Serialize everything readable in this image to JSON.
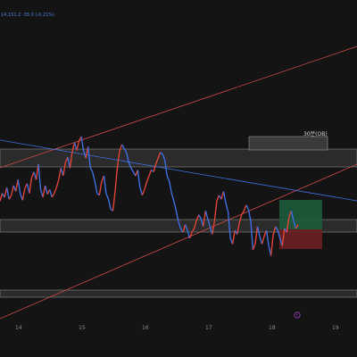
{
  "header": {
    "ohlc_text": "14,151.2  -35.0 (-0.21%)"
  },
  "chart_data": {
    "type": "line",
    "x_ticks": [
      "14",
      "15",
      "16",
      "17",
      "18",
      "19"
    ],
    "annotations": {
      "ob_label": "30분(OB)"
    },
    "colors": {
      "background": "#141414",
      "price_up": "#e0443a",
      "price_down": "#3f6fe0",
      "zone": "#2b2b2b",
      "zone_border": "#8a8a8a",
      "support_line": "#d04a4a",
      "trend_line": "#3f6fe0",
      "target_box": "#1e5a3a",
      "stop_box": "#6a1f22",
      "icon": "#a040c0"
    },
    "series": [
      {
        "price": [
          206,
          214,
          210,
          220,
          208,
          212,
          222,
          216,
          228,
          213,
          207,
          219,
          224,
          214,
          230,
          236,
          228,
          244,
          218,
          210,
          222,
          213,
          218,
          210,
          214,
          220,
          228,
          240,
          232,
          246,
          251,
          240,
          257,
          266,
          258,
          268,
          272,
          258,
          250,
          262,
          240,
          236,
          226,
          214,
          212,
          226,
          232,
          214,
          208,
          198,
          196,
          216,
          242,
          258,
          264,
          260,
          256,
          246,
          240,
          236,
          232,
          238,
          220,
          212,
          218,
          226,
          232,
          238,
          236,
          244,
          250,
          256,
          254,
          248,
          232,
          226,
          214,
          206,
          196,
          185,
          178,
          174,
          182,
          176,
          168,
          174,
          178,
          186,
          192,
          188,
          180,
          196,
          188,
          180,
          172,
          186,
          206,
          212,
          208,
          216,
          204,
          195,
          168,
          162,
          176,
          172,
          184,
          192,
          196,
          202,
          198,
          186,
          156,
          162,
          180,
          170,
          162,
          170,
          176,
          160,
          150,
          172,
          180,
          176,
          168,
          160,
          178,
          174,
          190,
          196,
          186,
          178,
          182
        ]
      }
    ]
  },
  "tool_icon": "alert-icon"
}
